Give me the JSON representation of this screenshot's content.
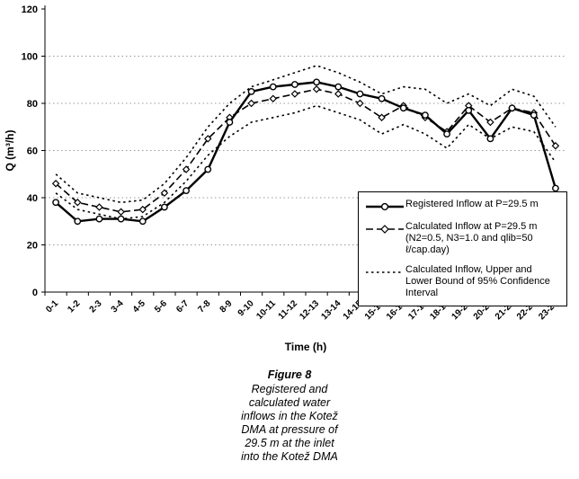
{
  "chart_data": {
    "type": "line",
    "title": "",
    "xlabel": "Time (h)",
    "ylabel": "Q (m³/h)",
    "ylim": [
      0,
      120
    ],
    "ytick_step": 20,
    "grid": true,
    "legend_position": "inside-right",
    "categories": [
      "0-1",
      "1-2",
      "2-3",
      "3-4",
      "4-5",
      "5-6",
      "6-7",
      "7-8",
      "8-9",
      "9-10",
      "10-11",
      "11-12",
      "12-13",
      "13-14",
      "14-15",
      "15-16",
      "16-17",
      "17-18",
      "18-19",
      "19-20",
      "20-21",
      "21-22",
      "22-23",
      "23-24"
    ],
    "series": [
      {
        "id": "registered",
        "name": "Registered Inflow at P=29.5 m",
        "line": "solid",
        "marker": "circle",
        "values": [
          38,
          30,
          31,
          31,
          30,
          36,
          43,
          52,
          72,
          85,
          87,
          88,
          89,
          87,
          84,
          82,
          78,
          75,
          67,
          77,
          65,
          78,
          75,
          44
        ]
      },
      {
        "id": "calculated",
        "name": "Calculated Inflow at P=29.5 m (N2=0.5, N3=1.0 and qlib=50 ℓ/cap.day)",
        "line": "dashed",
        "marker": "diamond",
        "values": [
          46,
          38,
          36,
          34,
          35,
          42,
          52,
          65,
          74,
          80,
          82,
          84,
          86,
          84,
          80,
          74,
          79,
          74,
          68,
          79,
          72,
          78,
          76,
          62
        ]
      },
      {
        "id": "ci-upper",
        "name": "Calculated Inflow, Upper Bound of 95% Confidence Interval",
        "line": "dotted",
        "marker": "none",
        "values": [
          50,
          42,
          40,
          38,
          39,
          46,
          57,
          70,
          80,
          87,
          90,
          93,
          96,
          93,
          89,
          84,
          87,
          86,
          80,
          84,
          79,
          86,
          83,
          70
        ]
      },
      {
        "id": "ci-lower",
        "name": "Calculated Inflow, Lower Bound of 95% Confidence Interval",
        "line": "dotted",
        "marker": "none",
        "values": [
          42,
          35,
          33,
          31,
          32,
          38,
          47,
          58,
          66,
          72,
          74,
          76,
          79,
          76,
          73,
          67,
          71,
          67,
          61,
          71,
          65,
          70,
          68,
          55
        ]
      }
    ]
  },
  "legend": {
    "items": [
      {
        "label": "Registered Inflow at P=29.5 m"
      },
      {
        "label": "Calculated Inflow at P=29.5 m (N2=0.5, N3=1.0 and qlib=50 ℓ/cap.day)"
      },
      {
        "label": "Calculated Inflow, Upper and Lower Bound of 95% Confidence Interval"
      }
    ]
  },
  "caption": {
    "figure_label": "Figure 8",
    "lines": [
      "Registered and",
      "calculated water",
      "inflows in the Kotež",
      "DMA at pressure of",
      "29.5 m at the inlet",
      "into the Kotež DMA"
    ]
  },
  "colors": {
    "line": "#000000",
    "grid": "#999999",
    "background": "#ffffff"
  }
}
